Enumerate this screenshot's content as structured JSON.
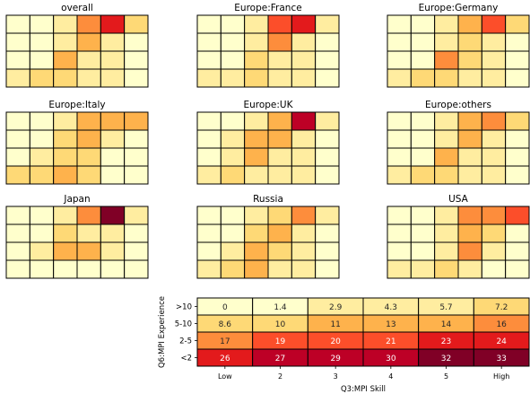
{
  "colormap": [
    "#ffffcc",
    "#ffeda0",
    "#fed976",
    "#feb24c",
    "#fd8d3c",
    "#fc4e2a",
    "#e31a1c",
    "#bd0026",
    "#800026"
  ],
  "chart_data": [
    {
      "type": "heatmap",
      "title": "overall",
      "values": [
        [
          0,
          0,
          1,
          4,
          6,
          2
        ],
        [
          0,
          0,
          1,
          3,
          1,
          0
        ],
        [
          0,
          0,
          3,
          1,
          1,
          0
        ],
        [
          1,
          2,
          2,
          1,
          1,
          0
        ]
      ]
    },
    {
      "type": "heatmap",
      "title": "Europe:France",
      "values": [
        [
          0,
          0,
          1,
          5,
          6,
          1
        ],
        [
          0,
          0,
          1,
          4,
          1,
          0
        ],
        [
          0,
          0,
          2,
          1,
          1,
          0
        ],
        [
          1,
          1,
          2,
          1,
          1,
          0
        ]
      ]
    },
    {
      "type": "heatmap",
      "title": "Europe:Germany",
      "values": [
        [
          0,
          0,
          1,
          3,
          5,
          2
        ],
        [
          0,
          0,
          1,
          2,
          1,
          0
        ],
        [
          0,
          0,
          4,
          2,
          1,
          0
        ],
        [
          1,
          2,
          2,
          1,
          1,
          0
        ]
      ]
    },
    {
      "type": "heatmap",
      "title": "Europe:Italy",
      "values": [
        [
          0,
          0,
          1,
          3,
          3,
          3
        ],
        [
          0,
          0,
          2,
          3,
          1,
          0
        ],
        [
          0,
          1,
          2,
          2,
          0,
          0
        ],
        [
          2,
          2,
          3,
          2,
          0,
          0
        ]
      ]
    },
    {
      "type": "heatmap",
      "title": "Europe:UK",
      "values": [
        [
          0,
          0,
          1,
          3,
          7,
          1
        ],
        [
          0,
          1,
          3,
          3,
          1,
          0
        ],
        [
          0,
          1,
          3,
          1,
          1,
          0
        ],
        [
          1,
          2,
          1,
          1,
          1,
          0
        ]
      ]
    },
    {
      "type": "heatmap",
      "title": "Europe:others",
      "values": [
        [
          0,
          0,
          1,
          3,
          4,
          2
        ],
        [
          0,
          0,
          1,
          3,
          1,
          0
        ],
        [
          0,
          0,
          3,
          1,
          1,
          0
        ],
        [
          1,
          2,
          2,
          1,
          1,
          0
        ]
      ]
    },
    {
      "type": "heatmap",
      "title": "Japan",
      "values": [
        [
          0,
          0,
          1,
          4,
          8,
          1
        ],
        [
          0,
          0,
          2,
          1,
          1,
          0
        ],
        [
          0,
          1,
          3,
          3,
          1,
          0
        ],
        [
          0,
          0,
          0,
          0,
          0,
          0
        ]
      ]
    },
    {
      "type": "heatmap",
      "title": "Russia",
      "values": [
        [
          0,
          0,
          1,
          2,
          4,
          1
        ],
        [
          0,
          0,
          2,
          3,
          1,
          0
        ],
        [
          0,
          1,
          3,
          2,
          1,
          0
        ],
        [
          1,
          2,
          3,
          1,
          1,
          0
        ]
      ]
    },
    {
      "type": "heatmap",
      "title": "USA",
      "values": [
        [
          0,
          0,
          1,
          4,
          4,
          5
        ],
        [
          0,
          0,
          1,
          3,
          2,
          0
        ],
        [
          0,
          0,
          1,
          4,
          1,
          0
        ],
        [
          1,
          1,
          2,
          1,
          0,
          0
        ]
      ]
    },
    {
      "type": "heatmap",
      "xlabel": "Q3:MPI Skill",
      "ylabel": "Q6:MPI Experience",
      "categories": [
        "Low",
        "2",
        "3",
        "4",
        "5",
        "High"
      ],
      "rows": [
        ">10",
        "5-10",
        "2-5",
        "<2"
      ],
      "values": [
        [
          0,
          1.4,
          2.9,
          4.3,
          5.7,
          7.2
        ],
        [
          8.6,
          10,
          11,
          13,
          14,
          16
        ],
        [
          17,
          19,
          20,
          21,
          23,
          24
        ],
        [
          26,
          27,
          29,
          30,
          32,
          33
        ]
      ],
      "labels": [
        [
          "0",
          "1.4",
          "2.9",
          "4.3",
          "5.7",
          "7.2"
        ],
        [
          "8.6",
          "10",
          "11",
          "13",
          "14",
          "16"
        ],
        [
          "17",
          "19",
          "20",
          "21",
          "23",
          "24"
        ],
        [
          "26",
          "27",
          "29",
          "30",
          "32",
          "33"
        ]
      ],
      "vmax": 33
    }
  ]
}
